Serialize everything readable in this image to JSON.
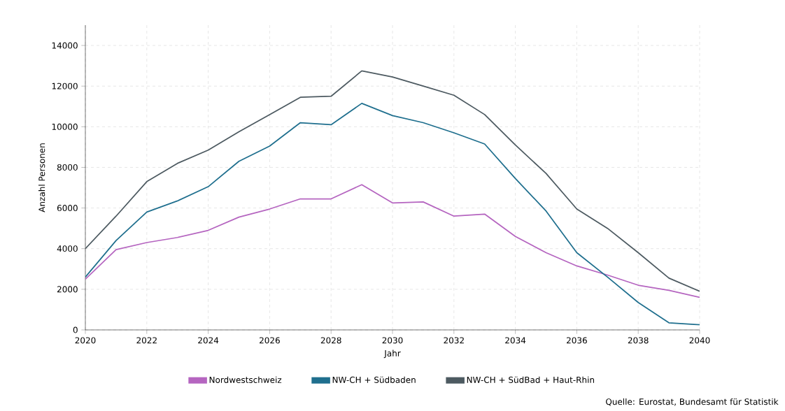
{
  "chart_data": {
    "type": "line",
    "xlabel": "Jahr",
    "ylabel": "Anzahl Personen",
    "x": [
      2020,
      2021,
      2022,
      2023,
      2024,
      2025,
      2026,
      2027,
      2028,
      2029,
      2030,
      2031,
      2032,
      2033,
      2034,
      2035,
      2036,
      2037,
      2038,
      2039,
      2040
    ],
    "series": [
      {
        "name": "Nordwestschweiz",
        "color": "#b565c0",
        "values": [
          2500,
          3950,
          4300,
          4550,
          4900,
          5550,
          5950,
          6450,
          6450,
          7150,
          6250,
          6300,
          5600,
          5700,
          4600,
          3800,
          3150,
          2700,
          2200,
          1950,
          1600
        ]
      },
      {
        "name": "NW-CH + Südbaden",
        "color": "#1f6f8e",
        "values": [
          2600,
          4400,
          5800,
          6350,
          7050,
          8300,
          9050,
          10200,
          10100,
          11150,
          10550,
          10200,
          9700,
          9150,
          7450,
          5850,
          3800,
          2600,
          1350,
          350,
          250
        ]
      },
      {
        "name": "NW-CH + SüdBad + Haut-Rhin",
        "color": "#4d5a61",
        "values": [
          4000,
          5600,
          7300,
          8200,
          8850,
          9750,
          10600,
          11450,
          11500,
          12750,
          12450,
          12000,
          11550,
          10600,
          9100,
          7700,
          5950,
          5000,
          3800,
          2550,
          1900
        ]
      }
    ],
    "xlim": [
      2020,
      2040
    ],
    "ylim": [
      0,
      15000
    ],
    "xticks": [
      2020,
      2022,
      2024,
      2026,
      2028,
      2030,
      2032,
      2034,
      2036,
      2038,
      2040
    ],
    "yticks": [
      0,
      2000,
      4000,
      6000,
      8000,
      10000,
      12000,
      14000
    ],
    "grid": true,
    "legend": "bottom",
    "marker": "none",
    "line_style": "solid",
    "annotations": [
      "Quelle: Eurostat, Bundesamt für Statistik"
    ]
  }
}
